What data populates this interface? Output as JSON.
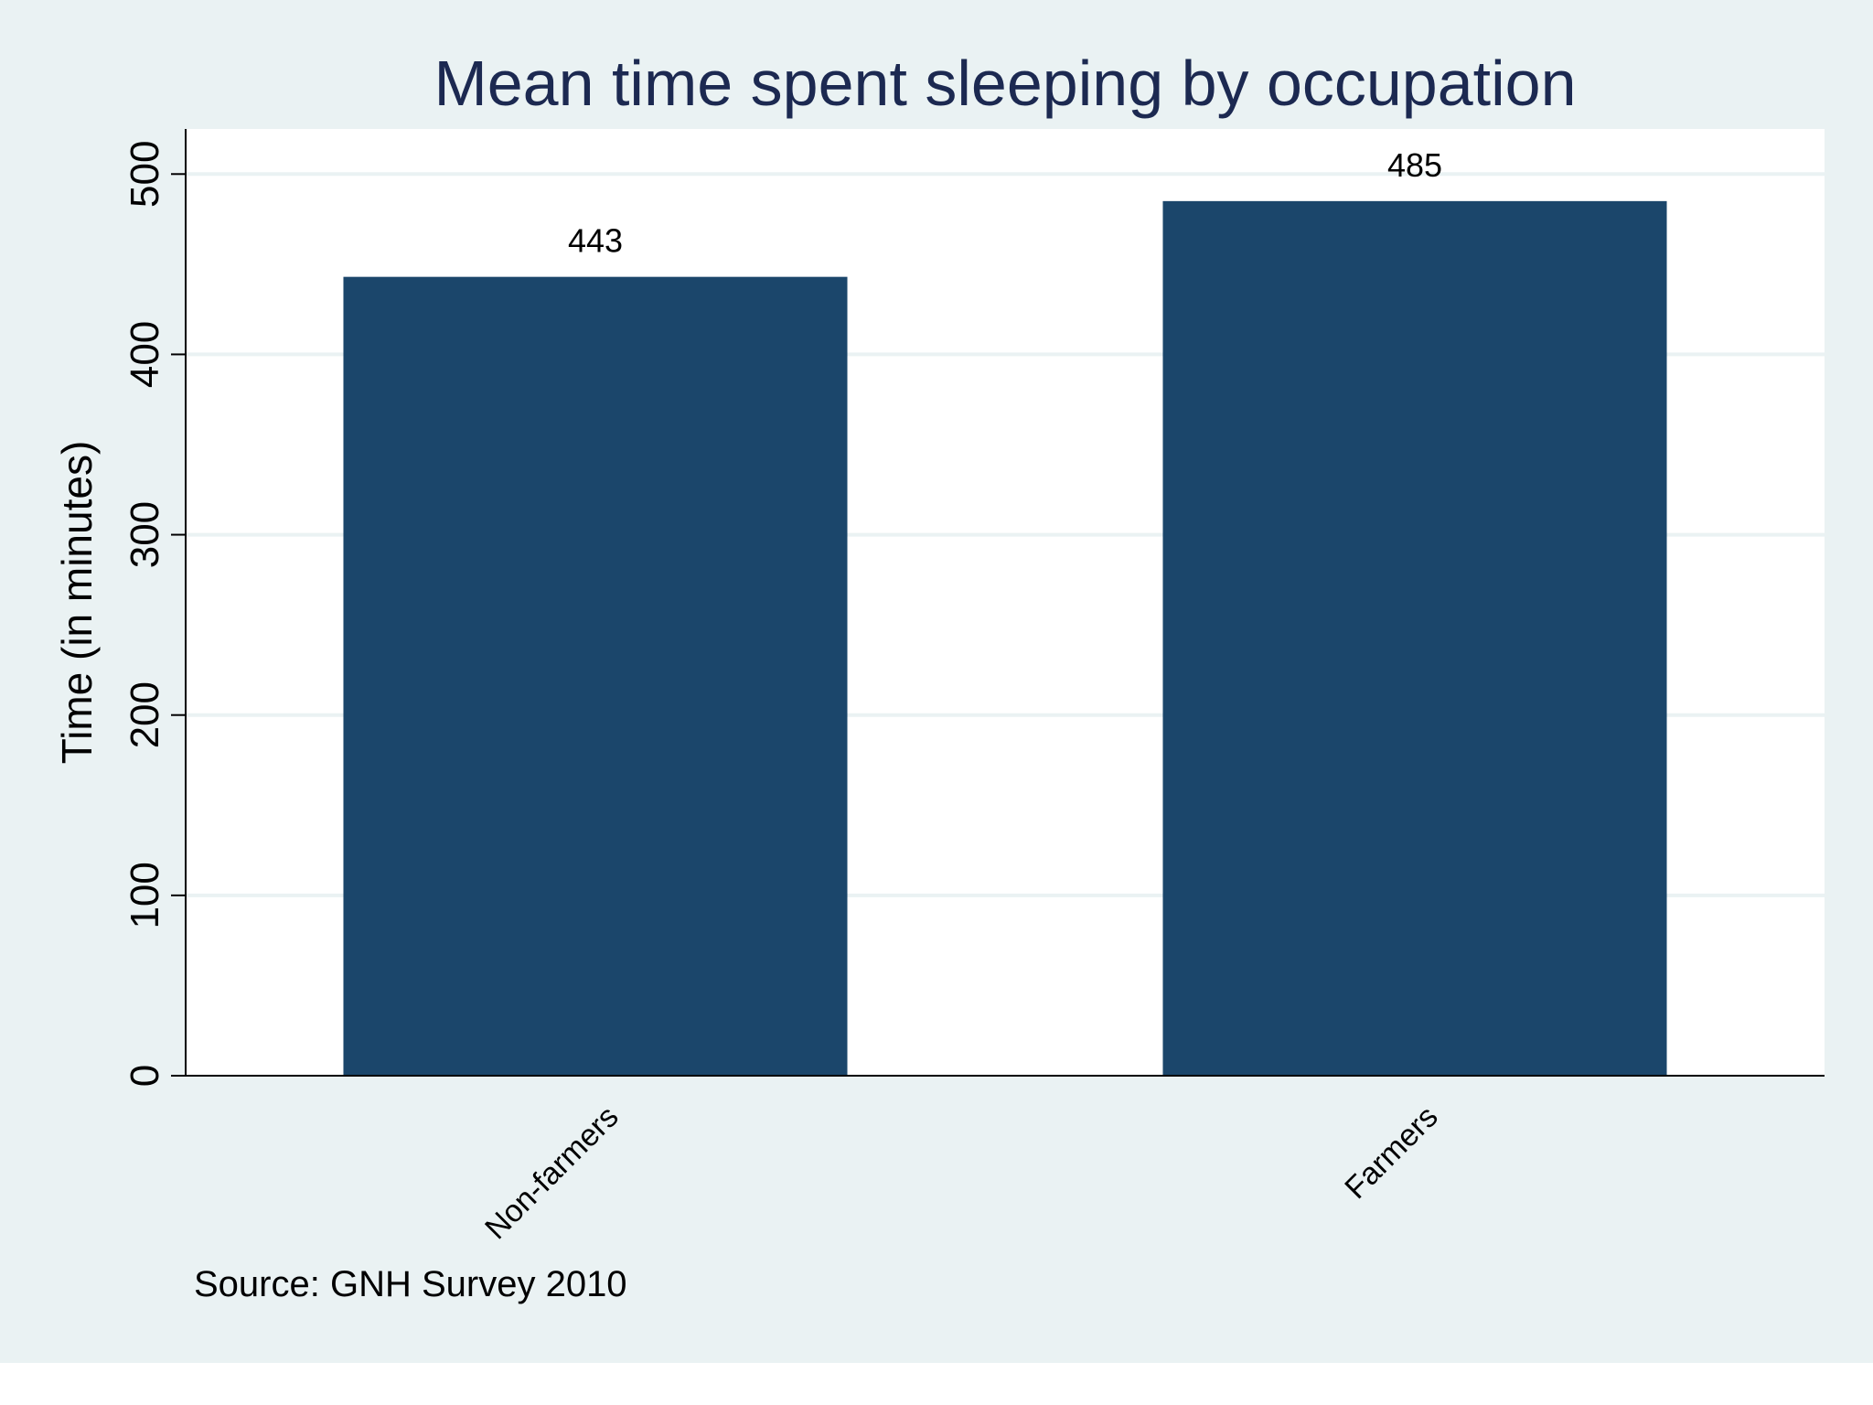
{
  "chart_data": {
    "type": "bar",
    "title": "Mean time spent sleeping by occupation",
    "xlabel": "",
    "ylabel": "Time (in minutes)",
    "categories": [
      "Non-farmers",
      "Farmers"
    ],
    "values": [
      443,
      485
    ],
    "value_labels": [
      "443",
      "485"
    ],
    "ylim": [
      0,
      525
    ],
    "yticks": [
      0,
      100,
      200,
      300,
      400,
      500
    ],
    "ytick_labels": [
      "0",
      "100",
      "200",
      "300",
      "400",
      "500"
    ],
    "grid": true,
    "legend": "none",
    "note": "Source: GNH Survey 2010",
    "colors": {
      "background": "#eaf2f3",
      "plot_background": "#ffffff",
      "bar": "#1b466b",
      "title": "#1c2951",
      "grid": "#eaf2f3",
      "axis": "#000000",
      "text": "#000000"
    }
  }
}
